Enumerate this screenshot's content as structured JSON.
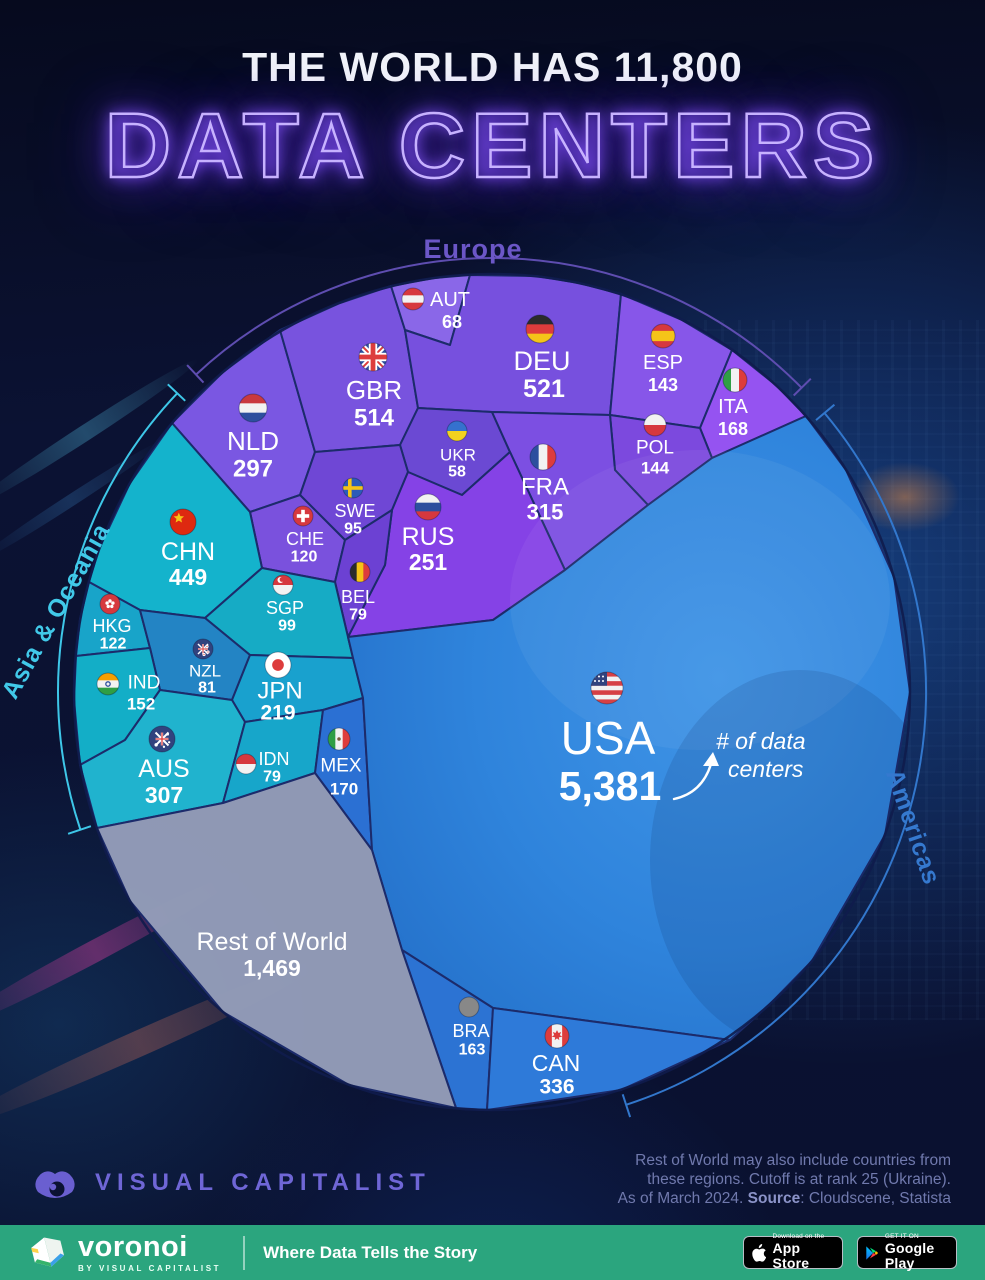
{
  "title": {
    "line1": "THE WORLD HAS 11,800",
    "line2": "DATA CENTERS"
  },
  "annotation": {
    "lines": [
      "# of data",
      "centers"
    ]
  },
  "chart_data": {
    "type": "voronoi",
    "title": "The World Has 11,800 Data Centers",
    "total": 11800,
    "unit": "# of data centers",
    "legend_position": "region arcs around circle",
    "regions": [
      {
        "name": "Europe",
        "color": "#6d58c8",
        "arc_color": "#5e4db0",
        "countries": [
          {
            "code": "DEU",
            "value": 521
          },
          {
            "code": "GBR",
            "value": 514
          },
          {
            "code": "FRA",
            "value": 315
          },
          {
            "code": "NLD",
            "value": 297
          },
          {
            "code": "RUS",
            "value": 251
          },
          {
            "code": "ITA",
            "value": 168
          },
          {
            "code": "POL",
            "value": 144
          },
          {
            "code": "ESP",
            "value": 143
          },
          {
            "code": "CHE",
            "value": 120
          },
          {
            "code": "SWE",
            "value": 95
          },
          {
            "code": "BEL",
            "value": 79
          },
          {
            "code": "AUT",
            "value": 68
          },
          {
            "code": "UKR",
            "value": 58
          }
        ]
      },
      {
        "name": "Asia & Oceania",
        "color": "#41c9e9",
        "arc_color": "#3ec7e8",
        "countries": [
          {
            "code": "CHN",
            "value": 449
          },
          {
            "code": "AUS",
            "value": 307
          },
          {
            "code": "JPN",
            "value": 219
          },
          {
            "code": "IND",
            "value": 152
          },
          {
            "code": "HKG",
            "value": 122
          },
          {
            "code": "SGP",
            "value": 99
          },
          {
            "code": "NZL",
            "value": 81
          },
          {
            "code": "IDN",
            "value": 79
          }
        ]
      },
      {
        "name": "Americas",
        "color": "#3579cf",
        "arc_color": "#3277cc",
        "countries": [
          {
            "code": "USA",
            "value": 5381
          },
          {
            "code": "CAN",
            "value": 336
          },
          {
            "code": "MEX",
            "value": 170
          },
          {
            "code": "BRA",
            "value": 163
          }
        ]
      },
      {
        "name": "Rest of World",
        "color": "#949db9",
        "countries": [
          {
            "code": "ROW",
            "label": "Rest of World",
            "value": 1469
          }
        ]
      }
    ]
  },
  "footer": {
    "logo_text": "VISUAL CAPITALIST",
    "note_line1": "Rest of World may also include countries from",
    "note_line2": "these regions. Cutoff is at rank 25 (Ukraine).",
    "note_line3_pre": "As of March 2024. ",
    "note_source_word": "Source",
    "note_line3_post": ": Cloudscene, Statista"
  },
  "bottom_bar": {
    "brand": "voronoi",
    "brand_sub": "BY VISUAL CAPITALIST",
    "tagline": "Where Data Tells the Story",
    "appstore_line1": "Download on the",
    "appstore_line2": "App Store",
    "gplay_line1": "GET IT ON",
    "gplay_line2": "Google Play"
  }
}
